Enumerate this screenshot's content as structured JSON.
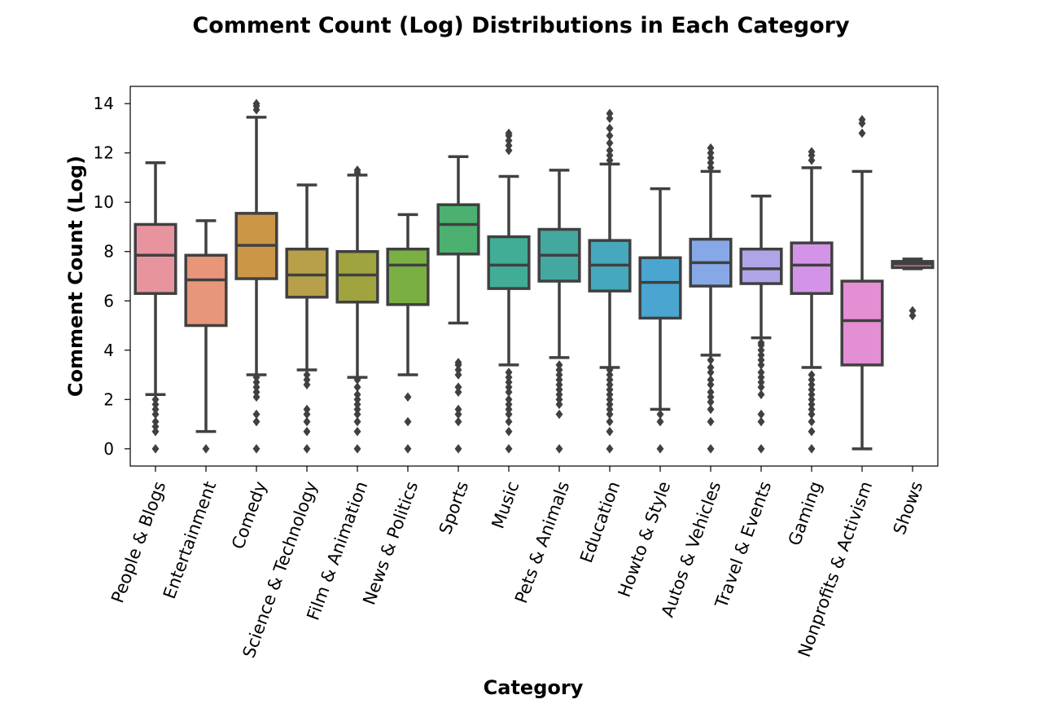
{
  "chart_data": {
    "type": "box",
    "title": "Comment Count (Log) Distributions in Each Category",
    "xlabel": "Category",
    "ylabel": "Comment Count (Log)",
    "ylim": [
      -0.7,
      14.7
    ],
    "yticks": [
      "0",
      "2",
      "4",
      "6",
      "8",
      "10",
      "12",
      "14"
    ],
    "grid": false,
    "legend": "none",
    "categories": [
      {
        "name": "People & Blogs",
        "color": "#e8949e",
        "whisker_low": 2.2,
        "q1": 6.3,
        "median": 7.85,
        "q3": 9.1,
        "whisker_high": 11.6,
        "outliers": [
          0,
          0.7,
          0.9,
          1.1,
          1.4,
          1.6,
          1.8,
          2.0
        ]
      },
      {
        "name": "Entertainment",
        "color": "#e8967a",
        "whisker_low": 0.7,
        "q1": 5.0,
        "median": 6.85,
        "q3": 7.85,
        "whisker_high": 9.25,
        "outliers": [
          0
        ]
      },
      {
        "name": "Comedy",
        "color": "#cc9647",
        "whisker_low": 3.0,
        "q1": 6.9,
        "median": 8.25,
        "q3": 9.55,
        "whisker_high": 13.45,
        "outliers": [
          0,
          1.1,
          1.4,
          2.1,
          2.3,
          2.5,
          2.7,
          2.9,
          13.75,
          13.9,
          14.0
        ]
      },
      {
        "name": "Science & Technology",
        "color": "#b8a04a",
        "whisker_low": 3.2,
        "q1": 6.15,
        "median": 7.05,
        "q3": 8.1,
        "whisker_high": 10.7,
        "outliers": [
          0,
          0.7,
          1.1,
          1.4,
          1.6,
          2.6,
          2.8,
          3.0
        ]
      },
      {
        "name": "Film & Animation",
        "color": "#a0a43e",
        "whisker_low": 2.9,
        "q1": 5.95,
        "median": 7.05,
        "q3": 8.0,
        "whisker_high": 11.1,
        "outliers": [
          0,
          0.7,
          1.1,
          1.4,
          1.6,
          1.8,
          2.0,
          2.2,
          2.5,
          2.8,
          11.2,
          11.3
        ]
      },
      {
        "name": "News & Politics",
        "color": "#7aaf44",
        "whisker_low": 3.0,
        "q1": 5.85,
        "median": 7.45,
        "q3": 8.1,
        "whisker_high": 9.5,
        "outliers": [
          0,
          1.1,
          2.1
        ]
      },
      {
        "name": "Sports",
        "color": "#4cb071",
        "whisker_low": 5.1,
        "q1": 7.9,
        "median": 9.1,
        "q3": 9.9,
        "whisker_high": 11.85,
        "outliers": [
          0,
          1.1,
          1.4,
          1.6,
          2.3,
          2.5,
          3.0,
          3.2,
          3.4,
          3.5
        ]
      },
      {
        "name": "Music",
        "color": "#41ad96",
        "whisker_low": 3.4,
        "q1": 6.5,
        "median": 7.45,
        "q3": 8.6,
        "whisker_high": 11.05,
        "outliers": [
          0,
          0.7,
          1.1,
          1.4,
          1.6,
          1.8,
          2.0,
          2.3,
          2.5,
          2.7,
          2.9,
          3.1,
          12.1,
          12.3,
          12.5,
          12.7,
          12.8
        ]
      },
      {
        "name": "Pets & Animals",
        "color": "#43a8a0",
        "whisker_low": 3.7,
        "q1": 6.8,
        "median": 7.85,
        "q3": 8.9,
        "whisker_high": 11.3,
        "outliers": [
          0,
          1.4,
          1.8,
          2.0,
          2.2,
          2.4,
          2.6,
          2.8,
          3.0,
          3.2,
          3.4
        ]
      },
      {
        "name": "Education",
        "color": "#45a8bc",
        "whisker_low": 3.3,
        "q1": 6.4,
        "median": 7.45,
        "q3": 8.45,
        "whisker_high": 11.55,
        "outliers": [
          0,
          0.7,
          1.1,
          1.4,
          1.6,
          1.8,
          2.0,
          2.2,
          2.4,
          2.6,
          2.8,
          3.0,
          3.2,
          11.7,
          11.9,
          12.1,
          12.4,
          12.7,
          13.0,
          13.4,
          13.6
        ]
      },
      {
        "name": "Howto & Style",
        "color": "#4aa6d1",
        "whisker_low": 1.6,
        "q1": 5.3,
        "median": 6.75,
        "q3": 7.75,
        "whisker_high": 10.55,
        "outliers": [
          0,
          1.1,
          1.4
        ]
      },
      {
        "name": "Autos & Vehicles",
        "color": "#86a8e6",
        "whisker_low": 3.8,
        "q1": 6.6,
        "median": 7.55,
        "q3": 8.5,
        "whisker_high": 11.25,
        "outliers": [
          0,
          1.1,
          1.6,
          1.9,
          2.1,
          2.3,
          2.6,
          2.8,
          3.1,
          3.3,
          3.6,
          11.4,
          11.6,
          11.8,
          12.0,
          12.2
        ]
      },
      {
        "name": "Travel & Events",
        "color": "#b0a4e8",
        "whisker_low": 4.5,
        "q1": 6.7,
        "median": 7.3,
        "q3": 8.1,
        "whisker_high": 10.25,
        "outliers": [
          0,
          1.1,
          1.4,
          2.2,
          2.5,
          2.7,
          2.9,
          3.1,
          3.4,
          3.6,
          3.8,
          4.0,
          4.2,
          4.3
        ]
      },
      {
        "name": "Gaming",
        "color": "#d394e8",
        "whisker_low": 3.3,
        "q1": 6.3,
        "median": 7.45,
        "q3": 8.35,
        "whisker_high": 11.4,
        "outliers": [
          0,
          0.7,
          1.1,
          1.4,
          1.6,
          1.8,
          2.0,
          2.2,
          2.4,
          2.6,
          2.8,
          3.0,
          11.7,
          11.9,
          12.05
        ]
      },
      {
        "name": "Nonprofits & Activism",
        "color": "#e48ed4",
        "whisker_low": 0,
        "q1": 3.4,
        "median": 5.2,
        "q3": 6.8,
        "whisker_high": 11.25,
        "outliers": [
          12.8,
          13.2,
          13.35
        ]
      },
      {
        "name": "Shows",
        "color": "#e891b8",
        "whisker_low": 7.3,
        "q1": 7.35,
        "median": 7.5,
        "q3": 7.6,
        "whisker_high": 7.7,
        "outliers": [
          5.4,
          5.6
        ]
      }
    ]
  }
}
